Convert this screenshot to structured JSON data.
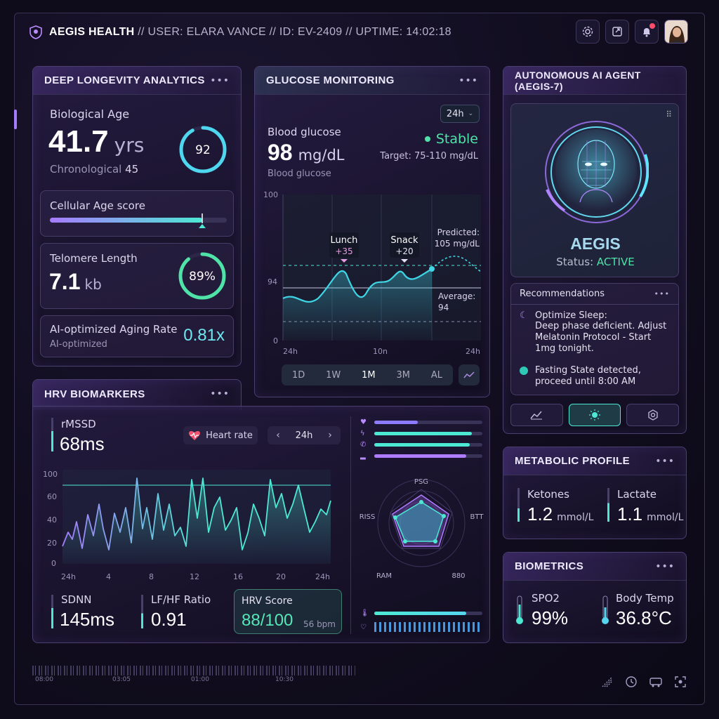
{
  "header": {
    "brand": "AEGIS HEALTH",
    "user_line": "// USER: ELARA VANCE // ID: EV-2409 // UPTIME: 14:02:18"
  },
  "longevity": {
    "title": "DEEP LONGEVITY ANALYTICS",
    "bio_age_label": "Biological Age",
    "bio_age_value": "41.7",
    "bio_age_unit": "yrs",
    "chrono_label": "Chronological",
    "chrono_value": "45",
    "ring_value": "92",
    "ring_fraction": 0.92,
    "cellular_label": "Cellular Age score",
    "cellular_fraction": 0.86,
    "telomere_label": "Telomere Length",
    "telomere_value": "7.1",
    "telomere_unit": "kb",
    "telomere_pct": "89%",
    "telomere_fraction": 0.89,
    "aging_label": "AI-optimized Aging Rate",
    "aging_sub": "AI-optimized",
    "aging_value": "0.81x"
  },
  "glucose": {
    "title": "GLUCOSE MONITORING",
    "range_select": "24h",
    "label": "Blood glucose",
    "value": "98",
    "unit": "mg/dL",
    "sub_label": "Blood glucose",
    "status": "Stable",
    "target": "Target: 75-110 mg/dL",
    "y_ticks": [
      "100",
      "94",
      "0"
    ],
    "x_ticks": [
      "24h",
      "10n",
      "24h"
    ],
    "annotations": [
      {
        "label": "Lunch",
        "delta": "+35"
      },
      {
        "label": "Snack",
        "delta": "+20"
      }
    ],
    "predicted_label": "Predicted:",
    "predicted_value": "105 mg/dL",
    "average_label": "Average:",
    "average_value": "94",
    "tabs": [
      "1D",
      "1W",
      "1M",
      "3M",
      "AL"
    ],
    "active_tab": "1M"
  },
  "agent": {
    "title": "AUTONOMOUS AI AGENT (AEGIS-7)",
    "name": "AEGIS",
    "status_label": "Status:",
    "status_value": "ACTIVE",
    "rec_title": "Recommendations",
    "rec_1_head": "Optimize Sleep:",
    "rec_1_body": "Deep phase deficient. Adjust Melatonin Protocol - Start 1mg tonight.",
    "rec_2": "Fasting State detected, proceed until 8:00 AM"
  },
  "hrv": {
    "title": "HRV BIOMARKERS",
    "rmssd_label": "rMSSD",
    "rmssd_value": "68ms",
    "heart_rate_label": "Heart rate",
    "range_value": "24h",
    "y_ticks": [
      "100",
      "60",
      "40",
      "20",
      "0"
    ],
    "x_ticks": [
      "24h",
      "4",
      "8",
      "12",
      "16",
      "20",
      "24h"
    ],
    "sdnn_label": "SDNN",
    "sdnn_value": "145ms",
    "lfhf_label": "LF/HF Ratio",
    "lfhf_value": "0.91",
    "score_label": "HRV Score",
    "score_value": "88/100",
    "score_sub": "56 bpm",
    "radar_labels": [
      "PSG",
      "BTT",
      "880",
      "RAM",
      "RISS"
    ],
    "bar_levels": [
      0.4,
      0.9,
      0.88,
      0.85
    ]
  },
  "metabolic": {
    "title": "METABOLIC PROFILE",
    "ketones_label": "Ketones",
    "ketones_value": "1.2",
    "ketones_unit": "mmol/L",
    "lactate_label": "Lactate",
    "lactate_value": "1.1",
    "lactate_unit": "mmol/L"
  },
  "biometrics": {
    "title": "BIOMETRICS",
    "spo2_label": "SPO2",
    "spo2_value": "99%",
    "temp_label": "Body Temp",
    "temp_value": "36.8°C"
  },
  "timeline": {
    "ticks": [
      "08:00",
      "03:05",
      "01:00",
      "10:30"
    ]
  },
  "colors": {
    "teal": "#4de8d4",
    "purple": "#a77bff",
    "cyan": "#56d6ee"
  }
}
